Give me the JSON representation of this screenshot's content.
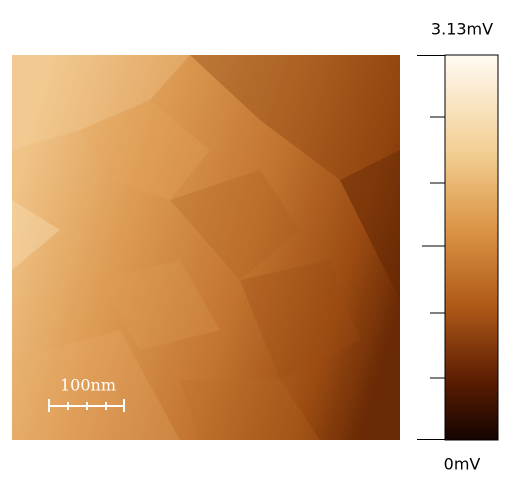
{
  "image": {
    "scale_bar_label": "100nm"
  },
  "colorbar": {
    "max_label": "3.13mV",
    "min_label": "0mV"
  }
}
